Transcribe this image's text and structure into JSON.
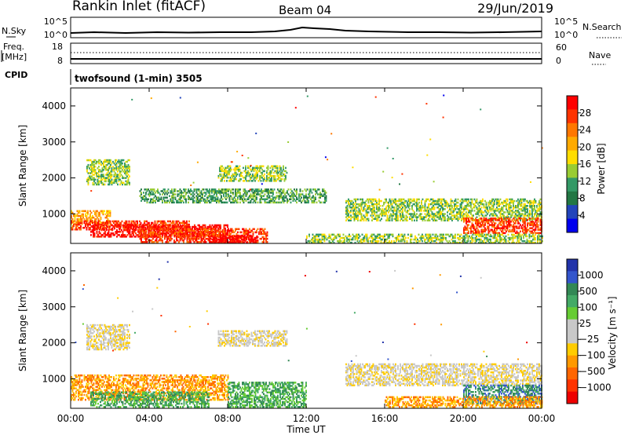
{
  "header": {
    "station": "Rankin Inlet (fitACF)",
    "beam": "Beam 04",
    "date": "29/Jun/2019"
  },
  "noise_panel": {
    "left_label": "N.Sky",
    "right_label": "N.Search",
    "left_ticks": [
      "10^5",
      "10^0"
    ],
    "right_ticks": [
      "10^5",
      "10^0"
    ]
  },
  "freq_panel": {
    "label_line1": "Freq.",
    "label_line2": "[MHz]",
    "left_ticks": [
      "18",
      "8"
    ],
    "right_label": "Nave",
    "right_ticks": [
      "60",
      "0"
    ]
  },
  "cpid": {
    "label": "CPID",
    "program": "twofsound (1-min) 3505"
  },
  "power_colorbar": {
    "title": "Power [dB]",
    "ticks": [
      "28",
      "24",
      "20",
      "16",
      "12",
      "8",
      "4"
    ],
    "colors": [
      "#ff0000",
      "#ff3300",
      "#ff7700",
      "#ffaa00",
      "#ffdd00",
      "#99cc33",
      "#339966",
      "#227744",
      "#2244bb",
      "#0000ee"
    ]
  },
  "velocity_colorbar": {
    "title": "Velocity [m s⁻¹]",
    "ticks": [
      "1000",
      "500",
      "100",
      "25",
      "−25",
      "−100",
      "−500",
      "−1000"
    ],
    "colors": [
      "#2233aa",
      "#3355cc",
      "#338855",
      "#44aa66",
      "#66cc33",
      "#c8c8c8",
      "#c8c8c8",
      "#ffcc00",
      "#ff9900",
      "#ff6600",
      "#ff3300",
      "#ee0000"
    ]
  },
  "chart_data": [
    {
      "type": "heatmap",
      "name": "power",
      "ylabel": "Slant Range [km]",
      "yticks": [
        1000,
        2000,
        3000,
        4000
      ],
      "ylim": [
        180,
        4500
      ],
      "xlim": [
        0,
        24
      ],
      "xticks": [
        "00:00",
        "04:00",
        "08:00",
        "12:00",
        "16:00",
        "20:00",
        "00:00"
      ],
      "bands": [
        {
          "t0": 0.0,
          "t1": 2.0,
          "r0": 700,
          "r1": 1100,
          "level": 6
        },
        {
          "t0": 0.0,
          "t1": 6.0,
          "r0": 550,
          "r1": 800,
          "level": 8
        },
        {
          "t0": 1.0,
          "t1": 8.0,
          "r0": 350,
          "r1": 700,
          "level": 9
        },
        {
          "t0": 3.5,
          "t1": 10.0,
          "r0": 200,
          "r1": 600,
          "level": 8
        },
        {
          "t0": 7.0,
          "t1": 9.5,
          "r0": 180,
          "r1": 380,
          "level": 10
        },
        {
          "t0": 0.8,
          "t1": 3.0,
          "r0": 1800,
          "r1": 2500,
          "level": 4
        },
        {
          "t0": 7.5,
          "t1": 11.0,
          "r0": 1900,
          "r1": 2350,
          "level": 4
        },
        {
          "t0": 3.5,
          "t1": 13.0,
          "r0": 1300,
          "r1": 1700,
          "level": 3
        },
        {
          "t0": 14.0,
          "t1": 24.0,
          "r0": 800,
          "r1": 1400,
          "level": 4
        },
        {
          "t0": 20.0,
          "t1": 24.0,
          "r0": 450,
          "r1": 900,
          "level": 8
        },
        {
          "t0": 12.0,
          "t1": 24.0,
          "r0": 180,
          "r1": 450,
          "level": 4
        }
      ]
    },
    {
      "type": "heatmap",
      "name": "velocity",
      "ylabel": "Slant Range [km]",
      "yticks": [
        1000,
        2000,
        3000,
        4000
      ],
      "ylim": [
        180,
        4500
      ],
      "xlim": [
        0,
        24
      ],
      "xticks": [
        "00:00",
        "04:00",
        "08:00",
        "12:00",
        "16:00",
        "20:00",
        "00:00"
      ],
      "xlabel": "Time UT",
      "bands": [
        {
          "t0": 0.0,
          "t1": 8.0,
          "r0": 400,
          "r1": 1100,
          "level": 3
        },
        {
          "t0": 1.0,
          "t1": 7.0,
          "r0": 200,
          "r1": 650,
          "level": 8
        },
        {
          "t0": 0.8,
          "t1": 3.0,
          "r0": 1800,
          "r1": 2500,
          "level": 5
        },
        {
          "t0": 7.5,
          "t1": 11.0,
          "r0": 1900,
          "r1": 2350,
          "level": 5
        },
        {
          "t0": 8.0,
          "t1": 12.0,
          "r0": 200,
          "r1": 900,
          "level": 8
        },
        {
          "t0": 14.0,
          "t1": 24.0,
          "r0": 800,
          "r1": 1400,
          "level": 5
        },
        {
          "t0": 20.0,
          "t1": 24.0,
          "r0": 300,
          "r1": 800,
          "level": 9
        },
        {
          "t0": 16.0,
          "t1": 24.0,
          "r0": 200,
          "r1": 500,
          "level": 3
        }
      ]
    }
  ]
}
